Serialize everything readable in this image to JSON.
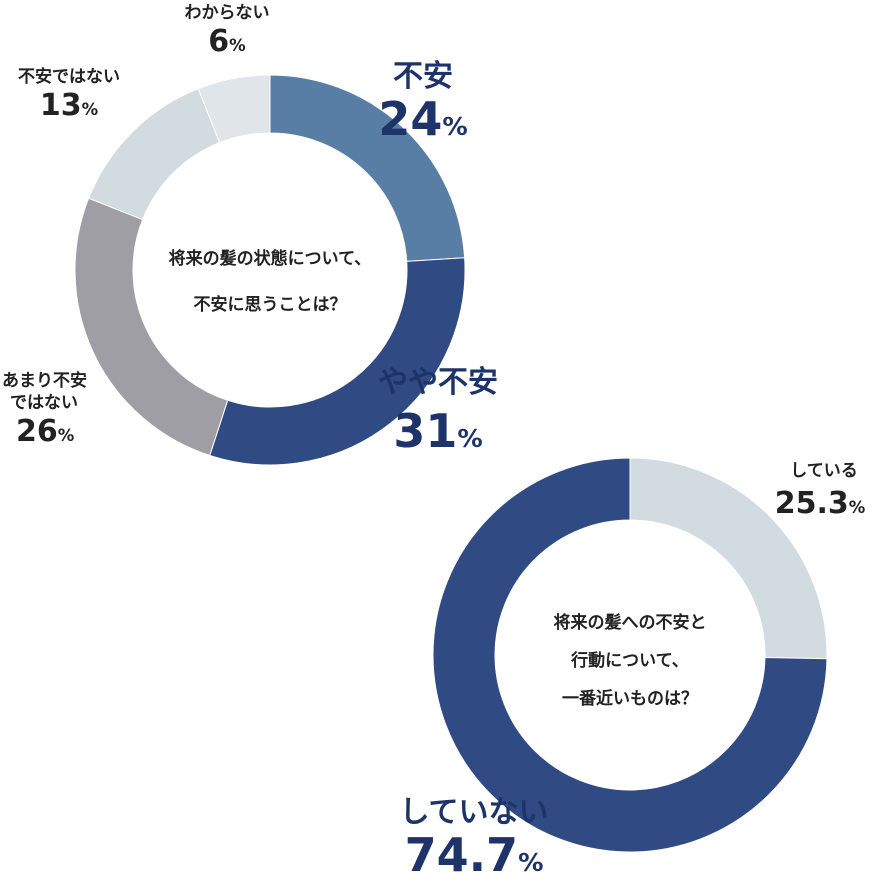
{
  "chart_data": [
    {
      "type": "donut",
      "center_text": [
        "将来の髪の状態について、",
        "不安に思うことは？"
      ],
      "slices": [
        {
          "label": "不安",
          "value": 24,
          "value_text": "24",
          "color": "#587ea6"
        },
        {
          "label": "やや不安",
          "value": 31,
          "value_text": "31",
          "color": "#304a83"
        },
        {
          "label": "あまり不安ではない",
          "value": 26,
          "value_text": "26",
          "label_lines": [
            "あまり不安",
            "ではない"
          ],
          "color": "#9e9ea4"
        },
        {
          "label": "不安ではない",
          "value": 13,
          "value_text": "13",
          "color": "#d2dbe0"
        },
        {
          "label": "わからない",
          "value": 6,
          "value_text": "6",
          "color": "#dfe5e9"
        }
      ],
      "unit": "%"
    },
    {
      "type": "donut",
      "center_text": [
        "将来の髪への不安と",
        "行動について、",
        "一番近いものは？"
      ],
      "slices": [
        {
          "label": "している",
          "value": 25.3,
          "value_text": "25.3",
          "color": "#d2dbe0"
        },
        {
          "label": "していない",
          "value": 74.7,
          "value_text": "74.7",
          "color": "#304a83"
        }
      ],
      "unit": "%"
    }
  ]
}
